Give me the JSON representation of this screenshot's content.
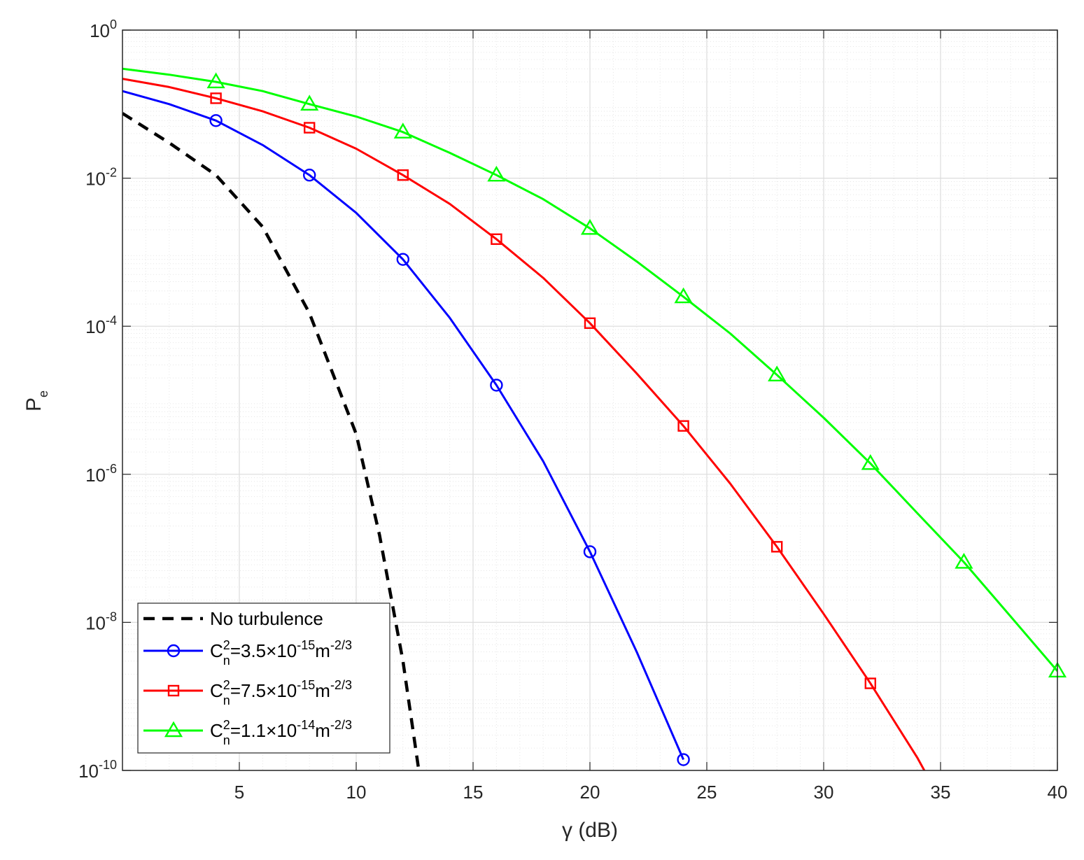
{
  "chart_data": {
    "type": "line",
    "xlabel": "γ (dB)",
    "ylabel": "P",
    "ylabel_subscript": "e",
    "xlim": [
      0,
      40
    ],
    "ylim": [
      1e-10,
      1
    ],
    "yscale": "log",
    "grid": true,
    "minor_grid": true,
    "x_ticks": [
      5,
      10,
      15,
      20,
      25,
      30,
      35,
      40
    ],
    "y_ticks": [
      {
        "value": 1,
        "base": "10",
        "exp": "0"
      },
      {
        "value": 0.01,
        "base": "10",
        "exp": "-2"
      },
      {
        "value": 0.0001,
        "base": "10",
        "exp": "-4"
      },
      {
        "value": 1e-06,
        "base": "10",
        "exp": "-6"
      },
      {
        "value": 1e-08,
        "base": "10",
        "exp": "-8"
      },
      {
        "value": 1e-10,
        "base": "10",
        "exp": "-10"
      }
    ],
    "legend": {
      "placement": "bottom-left",
      "entries": [
        {
          "series": 0,
          "text": "No turbulence"
        },
        {
          "series": 1,
          "parts": [
            "C",
            "2",
            "n",
            "=3.5×10",
            "-15",
            "m",
            "-2/3"
          ]
        },
        {
          "series": 2,
          "parts": [
            "C",
            "2",
            "n",
            "=7.5×10",
            "-15",
            "m",
            "-2/3"
          ]
        },
        {
          "series": 3,
          "parts": [
            "C",
            "2",
            "n",
            "=1.1×10",
            "-14",
            "m",
            "-2/3"
          ]
        }
      ]
    },
    "series": [
      {
        "name": "No turbulence",
        "color": "#000000",
        "dash": true,
        "marker": "none",
        "x": [
          0,
          2,
          4,
          6,
          8,
          10,
          11,
          12,
          13
        ],
        "y": [
          0.075,
          0.03,
          0.011,
          0.0022,
          0.00015,
          3.5e-06,
          1.5e-07,
          3e-09,
          2e-11
        ]
      },
      {
        "name": "C_n^2=3.5×10^-15 m^-2/3",
        "color": "#0000ff",
        "dash": false,
        "marker": "circle",
        "x": [
          0,
          2,
          4,
          6,
          8,
          10,
          12,
          14,
          16,
          18,
          20,
          22,
          24
        ],
        "y": [
          0.15,
          0.1,
          0.06,
          0.028,
          0.011,
          0.0034,
          0.0008,
          0.00013,
          1.6e-05,
          1.5e-06,
          9e-08,
          4e-09,
          1.4e-10
        ],
        "markers_x": [
          4,
          8,
          12,
          16,
          20,
          24
        ]
      },
      {
        "name": "C_n^2=7.5×10^-15 m^-2/3",
        "color": "#ff0000",
        "dash": false,
        "marker": "square",
        "x": [
          0,
          2,
          4,
          6,
          8,
          10,
          12,
          14,
          16,
          18,
          20,
          22,
          24,
          26,
          28,
          30,
          32,
          34,
          35
        ],
        "y": [
          0.22,
          0.17,
          0.12,
          0.08,
          0.048,
          0.025,
          0.011,
          0.0045,
          0.0015,
          0.00045,
          0.00011,
          2.3e-05,
          4.5e-06,
          7.5e-07,
          1.05e-07,
          1.3e-08,
          1.5e-09,
          1.5e-10,
          4e-11
        ],
        "markers_x": [
          4,
          8,
          12,
          16,
          20,
          24,
          28,
          32
        ]
      },
      {
        "name": "C_n^2=1.1×10^-14 m^-2/3",
        "color": "#00ff00",
        "dash": false,
        "marker": "triangle",
        "x": [
          0,
          2,
          4,
          6,
          8,
          10,
          12,
          14,
          16,
          18,
          20,
          22,
          24,
          26,
          28,
          30,
          32,
          34,
          36,
          38,
          40
        ],
        "y": [
          0.3,
          0.25,
          0.2,
          0.15,
          0.1,
          0.068,
          0.042,
          0.022,
          0.011,
          0.0052,
          0.0021,
          0.00075,
          0.00025,
          8e-05,
          2.2e-05,
          5.8e-06,
          1.4e-06,
          3e-07,
          6.5e-08,
          1.2e-08,
          2.2e-09
        ],
        "markers_x": [
          4,
          8,
          12,
          16,
          20,
          24,
          28,
          32,
          36,
          40
        ]
      }
    ]
  }
}
